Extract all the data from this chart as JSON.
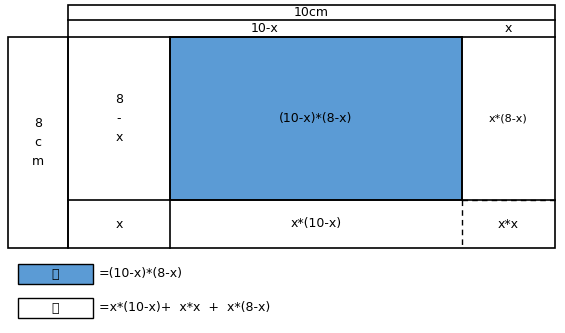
{
  "fig_width": 5.65,
  "fig_height": 3.33,
  "dpi": 100,
  "bg_color": "#ffffff",
  "blue_color": "#5b9bd5",
  "blue_label": "青",
  "white_label": "白",
  "top_label": "10cm",
  "col2_top": "10-x",
  "col3_top": "x",
  "left_label": "8\nc\nm",
  "row1_col1": "8\n-\nx",
  "row2_col1": "x",
  "blue_cell": "(10-x)*(8-x)",
  "right_top": "x*(8-x)",
  "bottom_mid": "x*(10-x)",
  "bottom_right": "x*x",
  "blue_formula": "=(10-x)*(8-x)",
  "white_formula": "=x*(10-x)+  x*x  +  x*(8-x)"
}
